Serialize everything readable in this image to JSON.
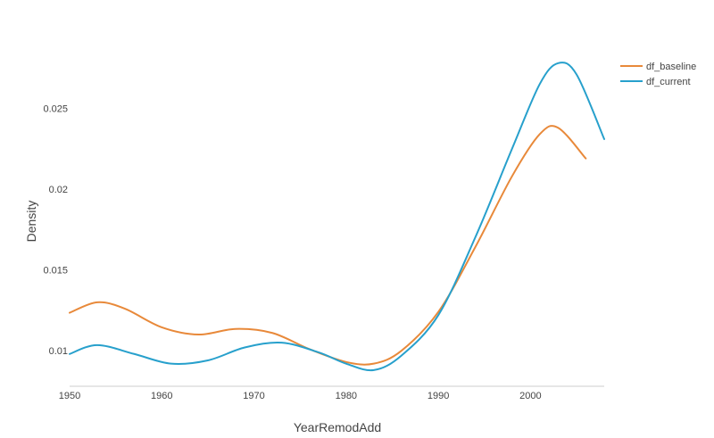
{
  "chart_data": {
    "type": "line",
    "title": "",
    "xlabel": "YearRemodAdd",
    "ylabel": "Density",
    "xlim": [
      1950,
      2008
    ],
    "ylim": [
      0.0078,
      0.0295
    ],
    "x_ticks": [
      1950,
      1960,
      1970,
      1980,
      1990,
      2000
    ],
    "x_tick_labels": [
      "1950",
      "1960",
      "1970",
      "1980",
      "1990",
      "2000"
    ],
    "y_ticks": [
      0.01,
      0.015,
      0.02,
      0.025
    ],
    "y_tick_labels": [
      "0.01",
      "0.015",
      "0.02",
      "0.025"
    ],
    "grid": false,
    "legend_position": "top-right",
    "series": [
      {
        "name": "df_baseline",
        "color": "#e8893a",
        "x": [
          1950,
          1953,
          1956,
          1960,
          1964,
          1968,
          1972,
          1976,
          1980,
          1983,
          1986,
          1990,
          1994,
          1998,
          2001,
          2003,
          2006
        ],
        "y": [
          0.01235,
          0.013,
          0.0126,
          0.01145,
          0.011,
          0.01135,
          0.0111,
          0.0101,
          0.0093,
          0.0092,
          0.01,
          0.0124,
          0.0164,
          0.0208,
          0.0234,
          0.0238,
          0.0219
        ]
      },
      {
        "name": "df_current",
        "color": "#27a0cc",
        "x": [
          1950,
          1953,
          1957,
          1961,
          1965,
          1969,
          1973,
          1977,
          1980,
          1983,
          1986,
          1990,
          1994,
          1998,
          2001,
          2003,
          2005,
          2008
        ],
        "y": [
          0.0098,
          0.01035,
          0.0098,
          0.0092,
          0.0094,
          0.0102,
          0.0105,
          0.0099,
          0.0092,
          0.0088,
          0.0097,
          0.0122,
          0.017,
          0.0225,
          0.0265,
          0.0278,
          0.0271,
          0.0231
        ]
      }
    ]
  }
}
